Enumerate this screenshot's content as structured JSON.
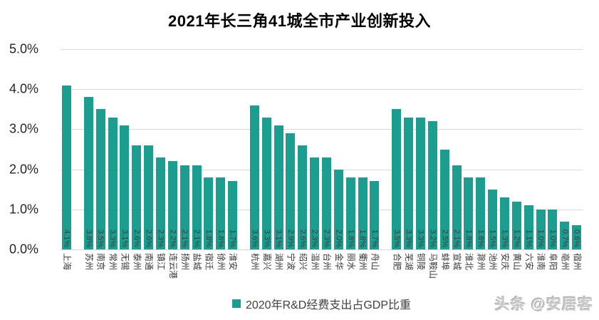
{
  "page": {
    "background": "#ffffff"
  },
  "watermark": {
    "text": "头条 @安居客"
  },
  "chart_data": {
    "type": "bar",
    "title": "2021年长三角41城全市产业创新投入",
    "legend": "2020年R&D经费支出占GDP比重",
    "legend_position": "bottom-center",
    "xlabel": "",
    "ylabel": "",
    "ylim": [
      0,
      5
    ],
    "ytick_labels": [
      "5.0%",
      "4.0%",
      "3.0%",
      "2.0%",
      "1.0%",
      "0.0%"
    ],
    "grid": true,
    "bar_color": "#1b9e8f",
    "gridline_color": "#d9d9d9",
    "value_suffix": "%",
    "groups": [
      {
        "cities": [
          "上海"
        ],
        "values": [
          4.1
        ]
      },
      {
        "cities": [
          "苏州",
          "南京",
          "常州",
          "无锡",
          "泰州",
          "南通",
          "镇江",
          "连云港",
          "扬州",
          "盐城",
          "宿迁",
          "徐州",
          "淮安"
        ],
        "values": [
          3.8,
          3.5,
          3.3,
          3.1,
          2.6,
          2.6,
          2.3,
          2.2,
          2.1,
          2.1,
          1.8,
          1.8,
          1.7
        ]
      },
      {
        "cities": [
          "杭州",
          "嘉兴",
          "湖州",
          "宁波",
          "绍兴",
          "温州",
          "台州",
          "金华",
          "丽水",
          "衢州",
          "舟山"
        ],
        "values": [
          3.6,
          3.3,
          3.1,
          2.9,
          2.6,
          2.3,
          2.3,
          2.0,
          1.8,
          1.8,
          1.7
        ]
      },
      {
        "cities": [
          "合肥",
          "芜湖",
          "铜陵",
          "马鞍山",
          "蚌埠",
          "宣城",
          "淮北",
          "滁州",
          "池州",
          "安庆",
          "黄山",
          "六安",
          "淮南",
          "阜阳",
          "亳州",
          "宿州"
        ],
        "values": [
          3.5,
          3.3,
          3.3,
          3.2,
          2.5,
          2.1,
          1.8,
          1.8,
          1.5,
          1.3,
          1.2,
          1.1,
          1.0,
          1.0,
          0.7,
          0.6
        ]
      }
    ]
  }
}
